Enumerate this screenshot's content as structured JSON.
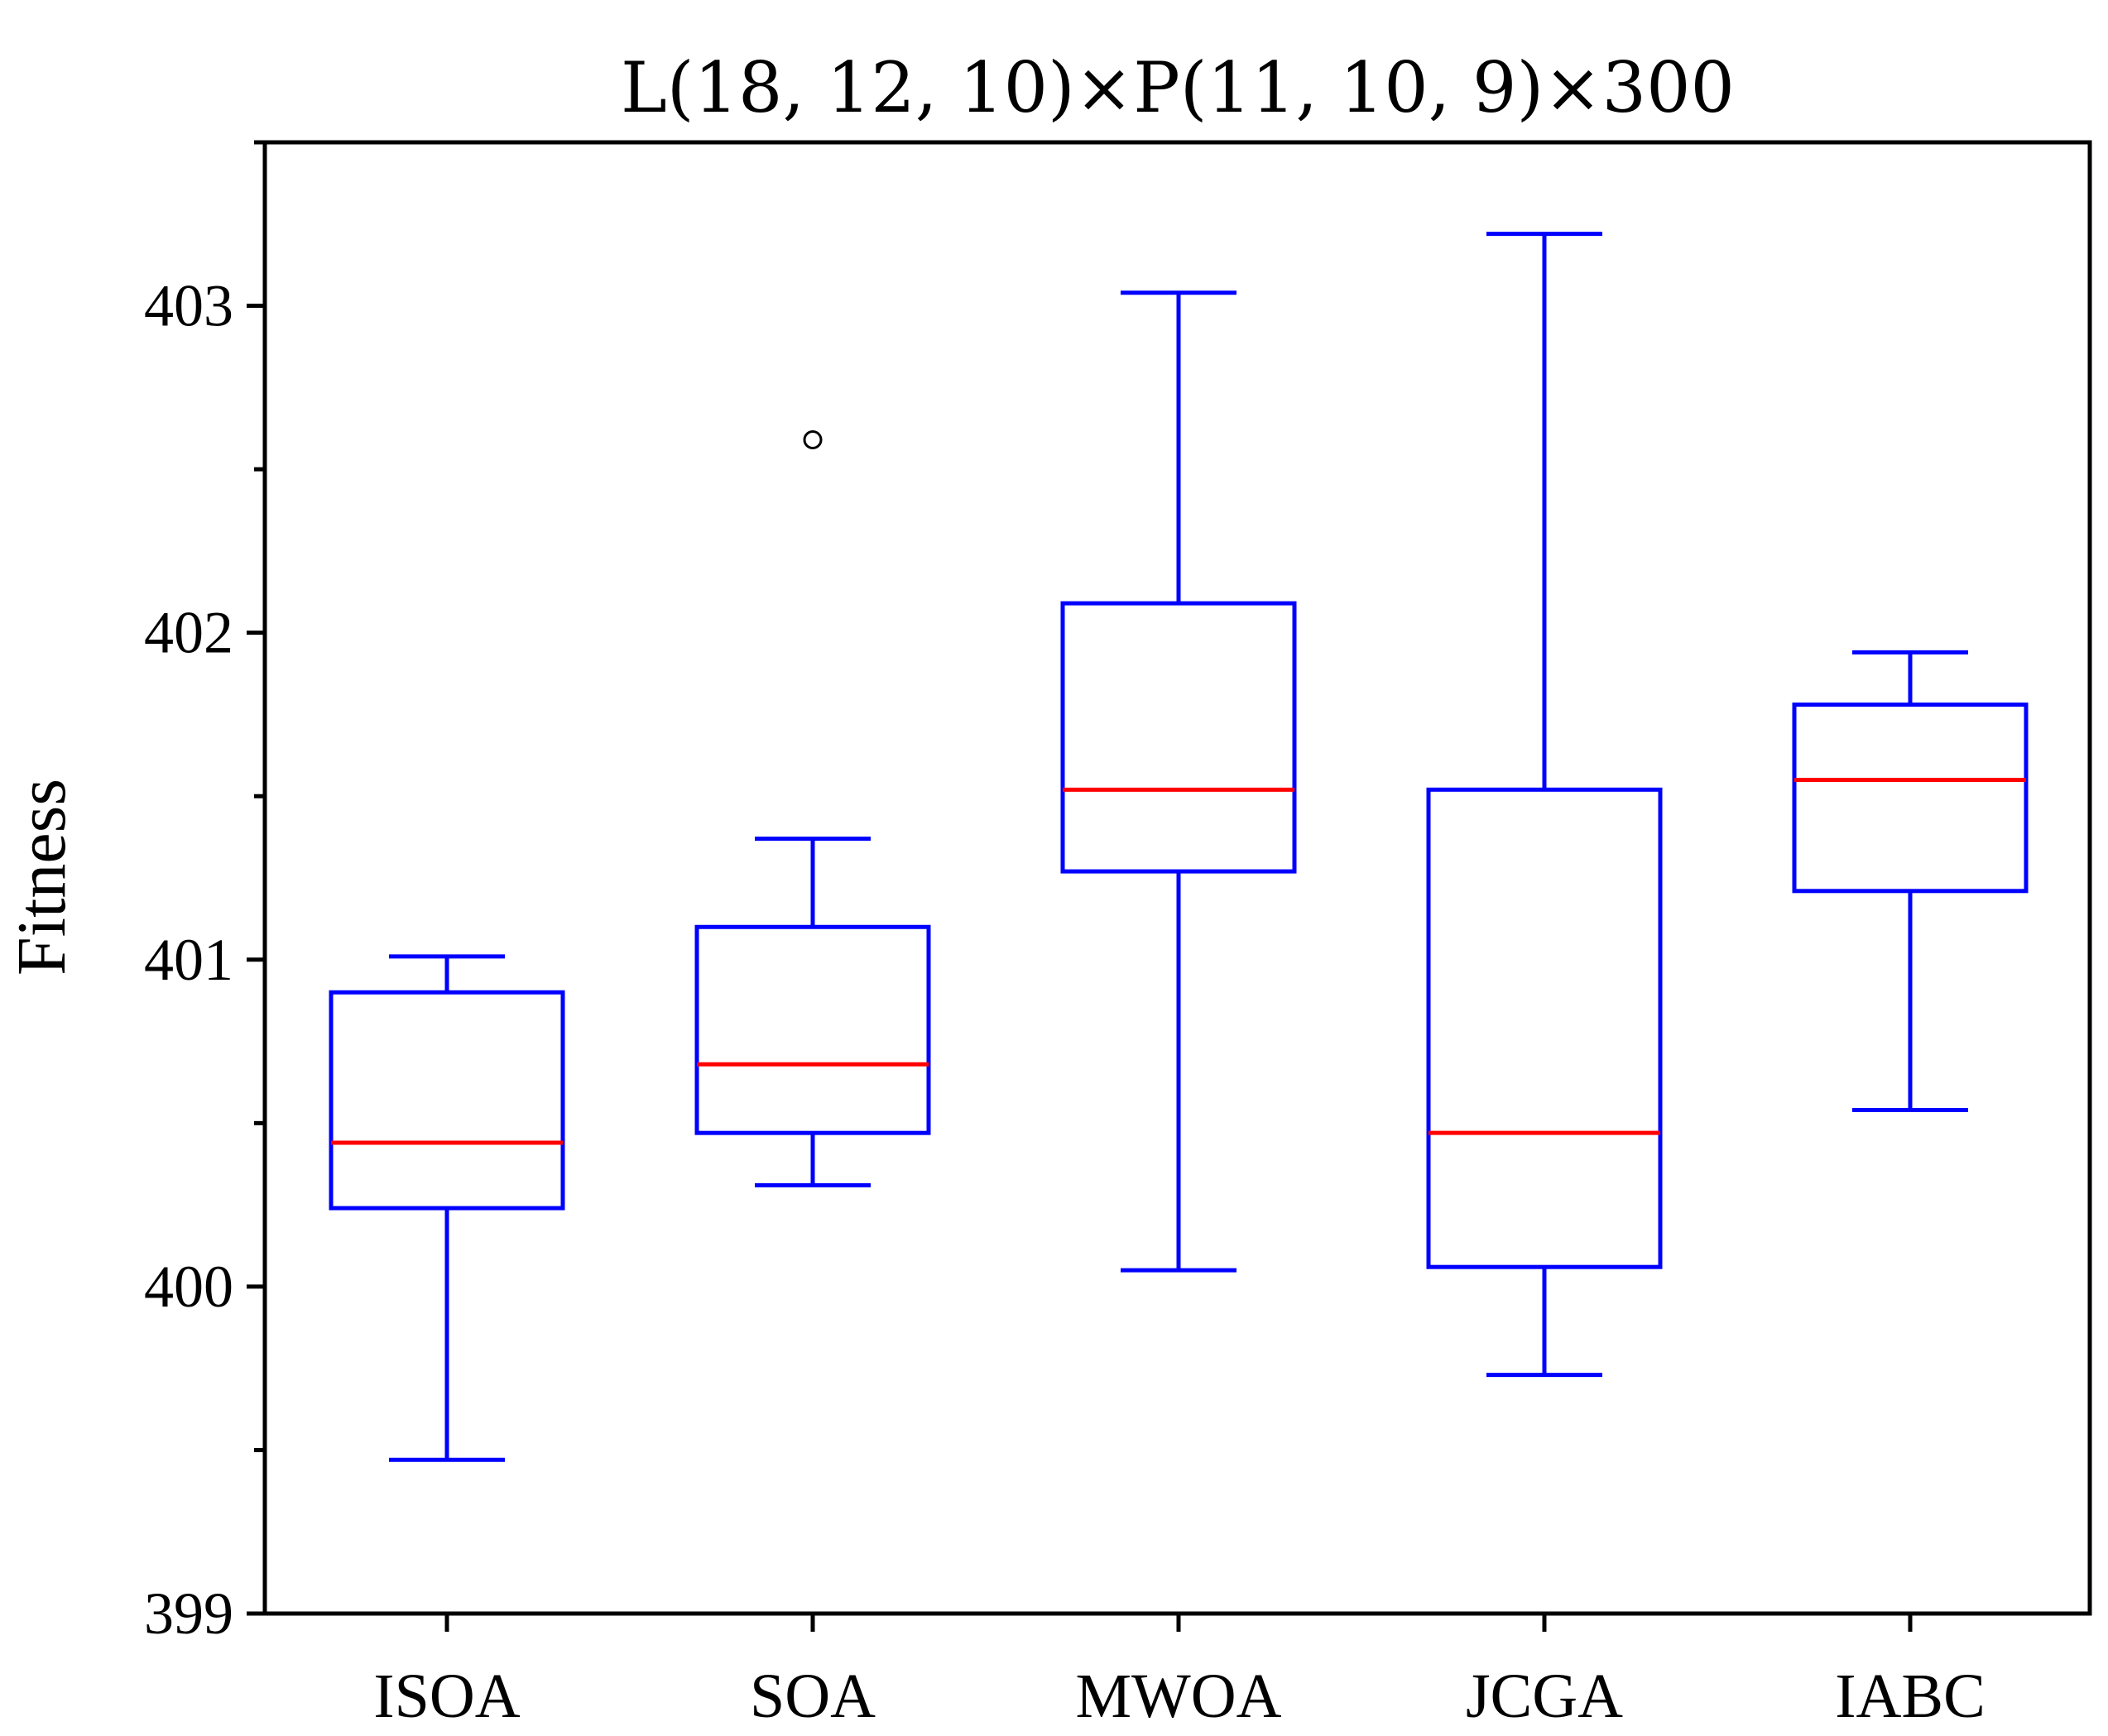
{
  "chart_data": {
    "type": "box",
    "title": "L(18, 12, 10)×P(11, 10, 9)×300",
    "xlabel": "",
    "ylabel": "Fitness",
    "ylim": [
      399,
      403.5
    ],
    "yticks": [
      399,
      400,
      401,
      402,
      403
    ],
    "ytick_labels": [
      "399",
      "400",
      "401",
      "402",
      "403"
    ],
    "y_minor_ticks": [
      399.5,
      400.5,
      401.5,
      402.5,
      403.5
    ],
    "grid": false,
    "legend": "none",
    "categories": [
      "ISOA",
      "SOA",
      "MWOA",
      "JCGA",
      "IABC"
    ],
    "boxes": [
      {
        "whisker_low": 399.47,
        "q1": 400.24,
        "median": 400.44,
        "q3": 400.9,
        "whisker_high": 401.01,
        "outliers": []
      },
      {
        "whisker_low": 400.31,
        "q1": 400.47,
        "median": 400.68,
        "q3": 401.1,
        "whisker_high": 401.37,
        "outliers": [
          402.59
        ]
      },
      {
        "whisker_low": 400.05,
        "q1": 401.27,
        "median": 401.52,
        "q3": 402.09,
        "whisker_high": 403.04,
        "outliers": []
      },
      {
        "whisker_low": 399.73,
        "q1": 400.06,
        "median": 400.47,
        "q3": 401.52,
        "whisker_high": 403.22,
        "outliers": []
      },
      {
        "whisker_low": 400.54,
        "q1": 401.21,
        "median": 401.55,
        "q3": 401.78,
        "whisker_high": 401.94,
        "outliers": []
      }
    ],
    "colors": {
      "box": "#0000ff",
      "median": "#ff0000",
      "outlier": "#000000",
      "axis": "#000000"
    }
  }
}
